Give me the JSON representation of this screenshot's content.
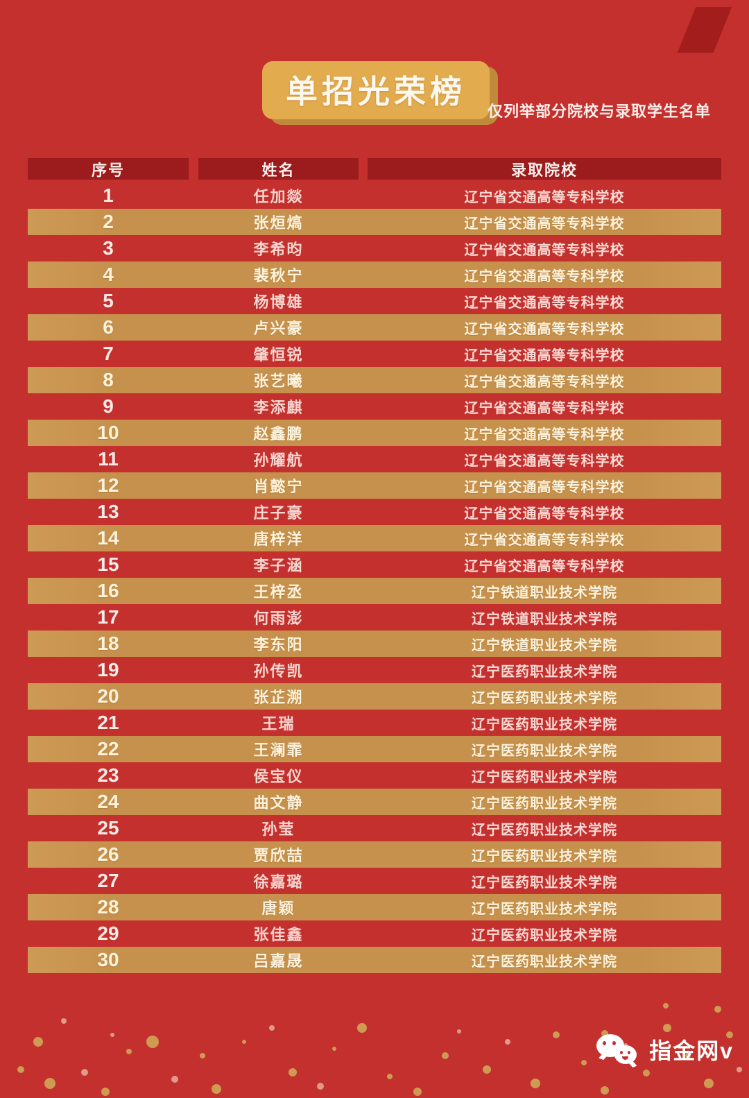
{
  "page": {
    "background_color": "#c4302d",
    "gold_color": "#c6914d",
    "dark_red_color": "#9c1c1d",
    "badge_gold_color": "#e2ab4e"
  },
  "header": {
    "title": "单招光荣榜",
    "subtitle": "仅列举部分院校与录取学生名单"
  },
  "table": {
    "columns": {
      "no": "序号",
      "name": "姓名",
      "school": "录取院校"
    },
    "rows": [
      {
        "no": "1",
        "name": "任加燚",
        "school": "辽宁省交通高等专科学校"
      },
      {
        "no": "2",
        "name": "张烜熇",
        "school": "辽宁省交通高等专科学校"
      },
      {
        "no": "3",
        "name": "李希昀",
        "school": "辽宁省交通高等专科学校"
      },
      {
        "no": "4",
        "name": "裴秋宁",
        "school": "辽宁省交通高等专科学校"
      },
      {
        "no": "5",
        "name": "杨博雄",
        "school": "辽宁省交通高等专科学校"
      },
      {
        "no": "6",
        "name": "卢兴豪",
        "school": "辽宁省交通高等专科学校"
      },
      {
        "no": "7",
        "name": "肇恒锐",
        "school": "辽宁省交通高等专科学校"
      },
      {
        "no": "8",
        "name": "张艺曦",
        "school": "辽宁省交通高等专科学校"
      },
      {
        "no": "9",
        "name": "李添麒",
        "school": "辽宁省交通高等专科学校"
      },
      {
        "no": "10",
        "name": "赵鑫鹏",
        "school": "辽宁省交通高等专科学校"
      },
      {
        "no": "11",
        "name": "孙耀航",
        "school": "辽宁省交通高等专科学校"
      },
      {
        "no": "12",
        "name": "肖懿宁",
        "school": "辽宁省交通高等专科学校"
      },
      {
        "no": "13",
        "name": "庄子豪",
        "school": "辽宁省交通高等专科学校"
      },
      {
        "no": "14",
        "name": "唐梓洋",
        "school": "辽宁省交通高等专科学校"
      },
      {
        "no": "15",
        "name": "李子涵",
        "school": "辽宁省交通高等专科学校"
      },
      {
        "no": "16",
        "name": "王梓丞",
        "school": "辽宁铁道职业技术学院"
      },
      {
        "no": "17",
        "name": "何雨澎",
        "school": "辽宁铁道职业技术学院"
      },
      {
        "no": "18",
        "name": "李东阳",
        "school": "辽宁铁道职业技术学院"
      },
      {
        "no": "19",
        "name": "孙传凯",
        "school": "辽宁医药职业技术学院"
      },
      {
        "no": "20",
        "name": "张芷溯",
        "school": "辽宁医药职业技术学院"
      },
      {
        "no": "21",
        "name": "王瑞",
        "school": "辽宁医药职业技术学院"
      },
      {
        "no": "22",
        "name": "王澜霏",
        "school": "辽宁医药职业技术学院"
      },
      {
        "no": "23",
        "name": "侯宝仪",
        "school": "辽宁医药职业技术学院"
      },
      {
        "no": "24",
        "name": "曲文静",
        "school": "辽宁医药职业技术学院"
      },
      {
        "no": "25",
        "name": "孙莹",
        "school": "辽宁医药职业技术学院"
      },
      {
        "no": "26",
        "name": "贾欣喆",
        "school": "辽宁医药职业技术学院"
      },
      {
        "no": "27",
        "name": "徐嘉璐",
        "school": "辽宁医药职业技术学院"
      },
      {
        "no": "28",
        "name": "唐颖",
        "school": "辽宁医药职业技术学院"
      },
      {
        "no": "29",
        "name": "张佳鑫",
        "school": "辽宁医药职业技术学院"
      },
      {
        "no": "30",
        "name": "吕嘉晟",
        "school": "辽宁医药职业技术学院"
      }
    ]
  },
  "footer": {
    "icon": "wechat-icon",
    "brand": "指金网v"
  }
}
